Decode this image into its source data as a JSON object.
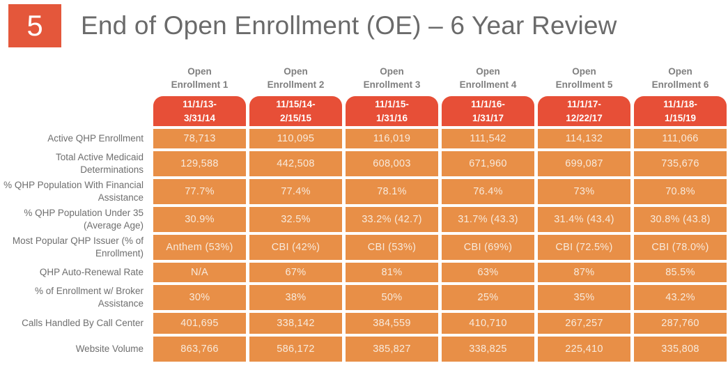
{
  "slide": {
    "number": "5",
    "title": "End of Open Enrollment (OE) – 6 Year Review"
  },
  "colors": {
    "slide_number_box": "#E4573B",
    "date_pill": "#E74F37",
    "data_cell": "#E88F47",
    "title_text": "#6A6A6A",
    "header_text": "#7F7F7F",
    "label_text": "#6E6E6E",
    "cell_text": "#F8EADC"
  },
  "table": {
    "columns": [
      {
        "name": "Open\nEnrollment 1",
        "dates": "11/1/13-\n3/31/14"
      },
      {
        "name": "Open\nEnrollment 2",
        "dates": "11/15/14-\n2/15/15"
      },
      {
        "name": "Open\nEnrollment 3",
        "dates": "11/1/15-\n1/31/16"
      },
      {
        "name": "Open\nEnrollment 4",
        "dates": "11/1/16-\n1/31/17"
      },
      {
        "name": "Open\nEnrollment 5",
        "dates": "11/1/17-\n12/22/17"
      },
      {
        "name": "Open\nEnrollment 6",
        "dates": "11/1/18-\n1/15/19"
      }
    ],
    "rows": [
      {
        "label": "Active QHP Enrollment",
        "values": [
          "78,713",
          "110,095",
          "116,019",
          "111,542",
          "114,132",
          "111,066"
        ]
      },
      {
        "label": "Total Active Medicaid Determinations",
        "values": [
          "129,588",
          "442,508",
          "608,003",
          "671,960",
          "699,087",
          "735,676"
        ]
      },
      {
        "label": "% QHP Population With Financial Assistance",
        "values": [
          "77.7%",
          "77.4%",
          "78.1%",
          "76.4%",
          "73%",
          "70.8%"
        ]
      },
      {
        "label": "% QHP Population Under 35 (Average Age)",
        "values": [
          "30.9%",
          "32.5%",
          "33.2% (42.7)",
          "31.7% (43.3)",
          "31.4% (43.4)",
          "30.8% (43.8)"
        ]
      },
      {
        "label": "Most Popular QHP Issuer (% of Enrollment)",
        "values": [
          "Anthem (53%)",
          "CBI (42%)",
          "CBI (53%)",
          "CBI (69%)",
          "CBI (72.5%)",
          "CBI (78.0%)"
        ]
      },
      {
        "label": "QHP Auto-Renewal Rate",
        "values": [
          "N/A",
          "67%",
          "81%",
          "63%",
          "87%",
          "85.5%"
        ]
      },
      {
        "label": "% of Enrollment w/ Broker Assistance",
        "values": [
          "30%",
          "38%",
          "50%",
          "25%",
          "35%",
          "43.2%"
        ]
      },
      {
        "label": "Calls Handled By Call Center",
        "values": [
          "401,695",
          "338,142",
          "384,559",
          "410,710",
          "267,257",
          "287,760"
        ]
      },
      {
        "label": "Website Volume",
        "values": [
          "863,766",
          "586,172",
          "385,827",
          "338,825",
          "225,410",
          "335,808"
        ]
      }
    ]
  }
}
